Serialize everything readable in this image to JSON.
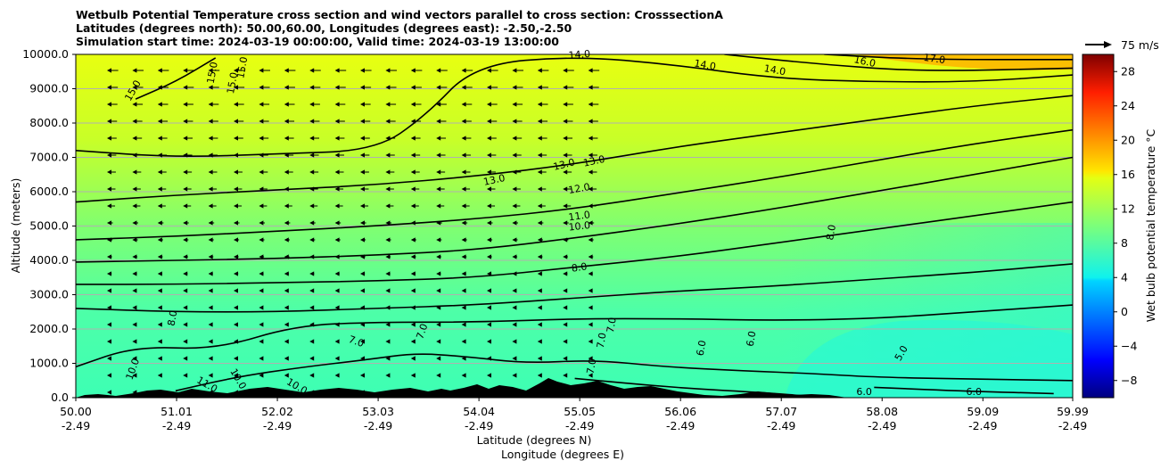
{
  "title_lines": [
    "Wetbulb Potential Temperature cross section and wind vectors parallel to cross section: CrosssectionA",
    "Latitudes (degrees north): 50.00,60.00, Longitudes (degrees east): -2.50,-2.50",
    "Simulation start time: 2024-03-19 00:00:00, Valid time: 2024-03-19 13:00:00"
  ],
  "chart_data": {
    "type": "contour cross-section with wind vectors",
    "title": "Wetbulb Potential Temperature cross section and wind vectors parallel to cross section: CrosssectionA",
    "ylabel": "Altitude (meters)",
    "xlabel_lines": [
      "Latitude (degrees N)",
      "Longitude (degrees E)"
    ],
    "ylim": [
      0,
      10000
    ],
    "xlim": [
      50.0,
      59.99
    ],
    "y_ticks": [
      0,
      1000,
      2000,
      3000,
      4000,
      5000,
      6000,
      7000,
      8000,
      9000,
      10000
    ],
    "y_tick_labels": [
      "0.0",
      "1000.0",
      "2000.0",
      "3000.0",
      "4000.0",
      "5000.0",
      "6000.0",
      "7000.0",
      "8000.0",
      "9000.0",
      "10000.0"
    ],
    "x_ticks": [
      50.0,
      51.01,
      52.02,
      53.03,
      54.04,
      55.05,
      56.06,
      57.07,
      58.08,
      59.09,
      59.99
    ],
    "x_tick_labels": [
      "50.00",
      "51.01",
      "52.02",
      "53.03",
      "54.04",
      "55.05",
      "56.06",
      "57.07",
      "58.08",
      "59.09",
      "59.99"
    ],
    "x_tick_labels_lon": [
      "-2.49",
      "-2.49",
      "-2.49",
      "-2.49",
      "-2.49",
      "-2.49",
      "-2.49",
      "-2.49",
      "-2.49",
      "-2.49",
      "-2.49"
    ],
    "grid": "horizontal",
    "colorbar": {
      "label": "Wet bulb potential temperature °C",
      "ticks": [
        -8,
        -4,
        0,
        4,
        8,
        12,
        16,
        20,
        24,
        28
      ],
      "tick_labels": [
        "−8",
        "−4",
        "0",
        "4",
        "8",
        "12",
        "16",
        "20",
        "24",
        "28"
      ],
      "range": [
        -10,
        30
      ],
      "colormap": "jet"
    },
    "quiver_key": "75 m/s",
    "contour_labels": [
      "14.0",
      "14.0",
      "14.0",
      "16.0",
      "17.0",
      "15.0",
      "15.0",
      "15.0",
      "15.0",
      "13.0",
      "13.0",
      "13.0",
      "12.0",
      "11.0",
      "10.0",
      "8.0",
      "8.0",
      "8.0",
      "7.0",
      "7.0",
      "7.0",
      "7.0",
      "7.0",
      "6.0",
      "6.0",
      "6.0",
      "6.0",
      "5.0",
      "10.0",
      "10.0",
      "10.0",
      "11.0"
    ],
    "series": [
      {
        "level": 6,
        "points": [
          [
            55.0,
            560
          ],
          [
            56.0,
            290
          ],
          [
            57.0,
            130
          ],
          [
            57.5,
            0
          ]
        ]
      },
      {
        "level": 6,
        "points": [
          [
            58.0,
            300
          ],
          [
            59.0,
            180
          ],
          [
            59.8,
            120
          ]
        ]
      },
      {
        "level": 7,
        "points": [
          [
            51.0,
            200
          ],
          [
            51.6,
            600
          ],
          [
            52.3,
            900
          ],
          [
            52.9,
            1100
          ],
          [
            53.4,
            1300
          ],
          [
            53.9,
            1200
          ],
          [
            54.5,
            1000
          ],
          [
            55.2,
            1100
          ],
          [
            55.9,
            900
          ],
          [
            56.7,
            780
          ],
          [
            57.4,
            700
          ],
          [
            58.0,
            600
          ],
          [
            58.8,
            550
          ],
          [
            59.99,
            500
          ]
        ]
      },
      {
        "level": 8,
        "points": [
          [
            50.0,
            900
          ],
          [
            50.6,
            1500
          ],
          [
            51.4,
            1400
          ],
          [
            52.2,
            2100
          ],
          [
            53.0,
            2200
          ],
          [
            54.0,
            2200
          ],
          [
            55.0,
            2300
          ],
          [
            56.0,
            2300
          ],
          [
            57.0,
            2250
          ],
          [
            58.0,
            2300
          ],
          [
            59.0,
            2500
          ],
          [
            59.99,
            2700
          ]
        ]
      },
      {
        "level": 9,
        "points": [
          [
            50.0,
            2600
          ],
          [
            51.0,
            2500
          ],
          [
            52.0,
            2500
          ],
          [
            53.0,
            2600
          ],
          [
            54.0,
            2700
          ],
          [
            55.0,
            2900
          ],
          [
            56.0,
            3100
          ],
          [
            57.0,
            3250
          ],
          [
            58.0,
            3450
          ],
          [
            59.0,
            3650
          ],
          [
            59.99,
            3900
          ]
        ]
      },
      {
        "level": 10,
        "points": [
          [
            50.0,
            3300
          ],
          [
            51.0,
            3300
          ],
          [
            52.0,
            3350
          ],
          [
            53.0,
            3400
          ],
          [
            54.0,
            3500
          ],
          [
            55.0,
            3800
          ],
          [
            56.0,
            4100
          ],
          [
            57.0,
            4500
          ],
          [
            58.0,
            4900
          ],
          [
            59.0,
            5300
          ],
          [
            59.99,
            5700
          ]
        ]
      },
      {
        "level": 11,
        "points": [
          [
            50.0,
            3950
          ],
          [
            51.0,
            4000
          ],
          [
            52.0,
            4050
          ],
          [
            53.0,
            4150
          ],
          [
            54.0,
            4300
          ],
          [
            55.0,
            4650
          ],
          [
            56.0,
            5050
          ],
          [
            57.0,
            5500
          ],
          [
            58.0,
            6000
          ],
          [
            59.0,
            6500
          ],
          [
            59.99,
            7000
          ]
        ]
      },
      {
        "level": 12,
        "points": [
          [
            50.0,
            4600
          ],
          [
            51.0,
            4700
          ],
          [
            52.0,
            4850
          ],
          [
            53.0,
            5000
          ],
          [
            54.0,
            5200
          ],
          [
            55.0,
            5500
          ],
          [
            56.0,
            5950
          ],
          [
            57.0,
            6400
          ],
          [
            58.0,
            6900
          ],
          [
            59.0,
            7400
          ],
          [
            59.99,
            7800
          ]
        ]
      },
      {
        "level": 13,
        "points": [
          [
            50.0,
            5700
          ],
          [
            51.0,
            5900
          ],
          [
            52.0,
            6050
          ],
          [
            53.0,
            6200
          ],
          [
            54.0,
            6450
          ],
          [
            55.0,
            6800
          ],
          [
            56.0,
            7300
          ],
          [
            57.0,
            7700
          ],
          [
            58.0,
            8100
          ],
          [
            59.0,
            8500
          ],
          [
            59.99,
            8800
          ]
        ]
      },
      {
        "level": 14,
        "points": [
          [
            50.0,
            7200
          ],
          [
            51.0,
            7000
          ],
          [
            52.0,
            7100
          ],
          [
            53.0,
            7200
          ],
          [
            53.5,
            8200
          ],
          [
            54.0,
            9700
          ],
          [
            55.0,
            9950
          ],
          [
            56.0,
            9700
          ],
          [
            57.0,
            9300
          ],
          [
            58.0,
            9200
          ],
          [
            59.0,
            9200
          ],
          [
            59.99,
            9400
          ]
        ]
      },
      {
        "level": 15,
        "points": [
          [
            50.6,
            8700
          ],
          [
            51.0,
            9200
          ],
          [
            51.4,
            9900
          ]
        ]
      },
      {
        "level": 16,
        "points": [
          [
            56.5,
            10000
          ],
          [
            57.5,
            9700
          ],
          [
            58.5,
            9500
          ],
          [
            59.99,
            9600
          ]
        ]
      },
      {
        "level": 17,
        "points": [
          [
            57.5,
            10000
          ],
          [
            58.5,
            9850
          ],
          [
            59.99,
            9850
          ]
        ]
      }
    ]
  }
}
